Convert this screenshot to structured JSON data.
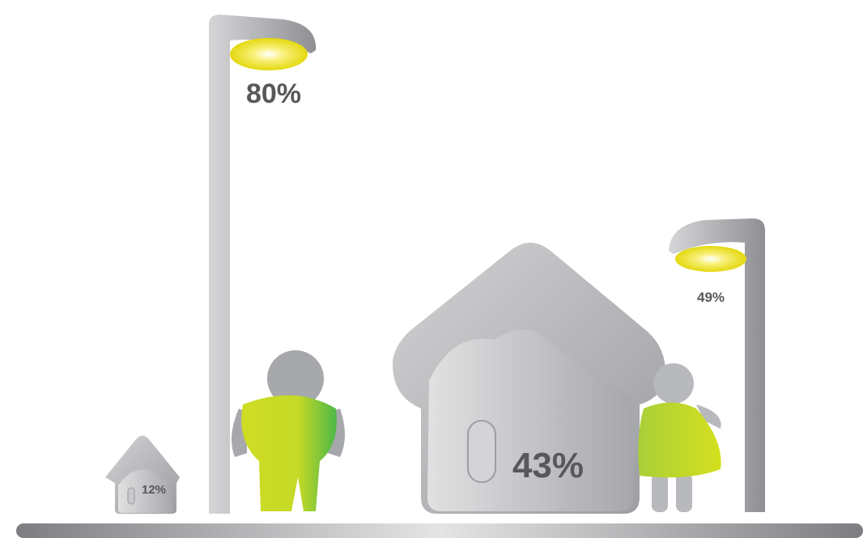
{
  "labels": {
    "lamp_tall": "80%",
    "house_small": "12%",
    "house_large": "43%",
    "lamp_short": "49%"
  }
}
